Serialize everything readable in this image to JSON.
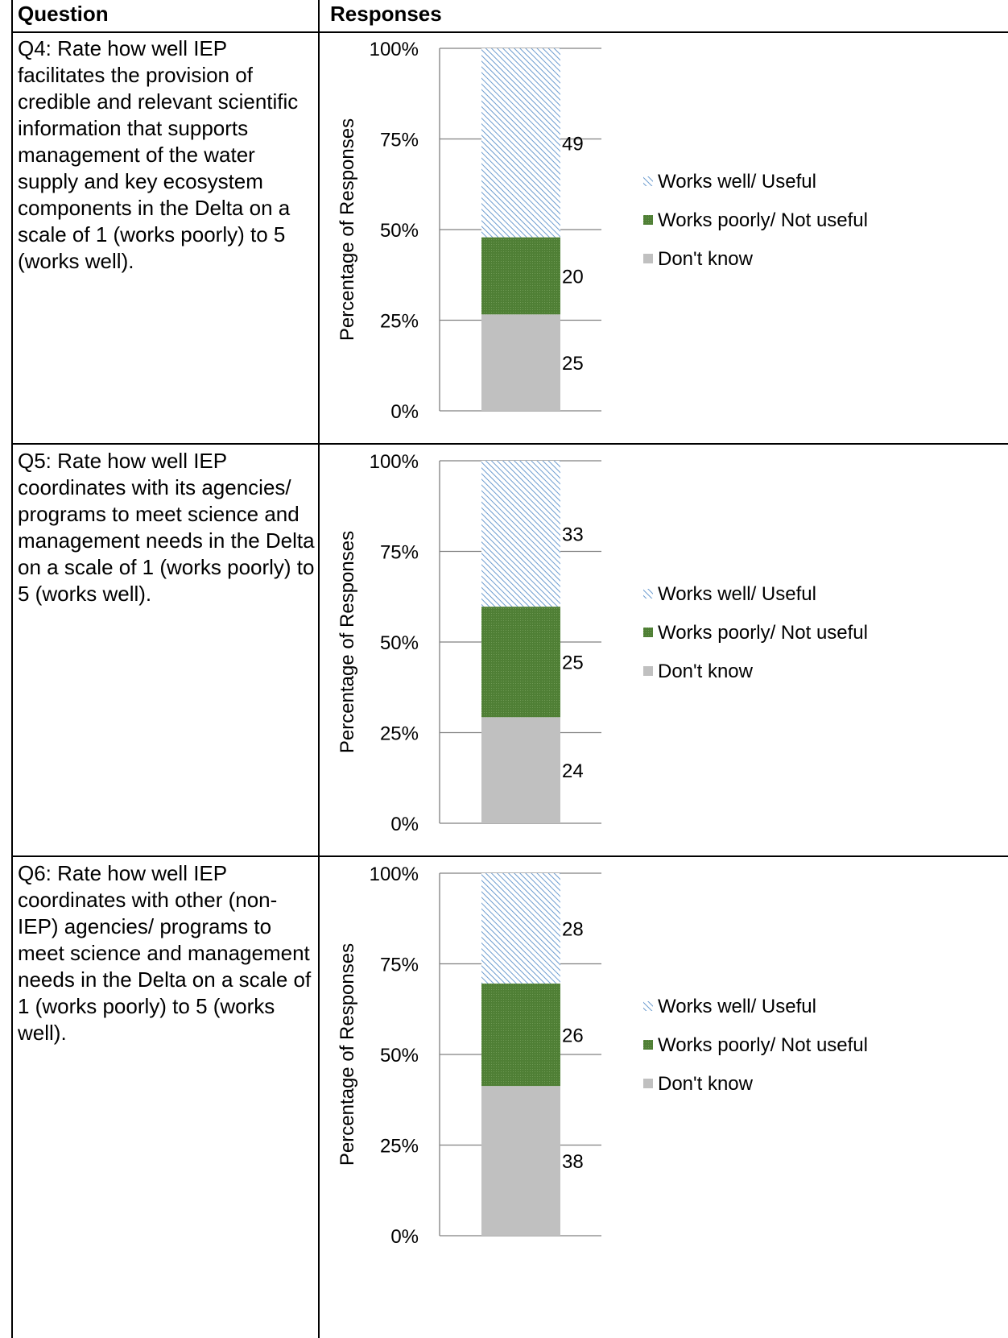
{
  "table": {
    "headers": {
      "question": "Question",
      "responses": "Responses"
    }
  },
  "rows": [
    {
      "question": "Q4: Rate how well IEP facilitates the provision of credible and relevant scientific information that supports management of the water supply and key ecosystem components in the Delta on a scale of 1 (works poorly) to 5 (works well)."
    },
    {
      "question": "Q5: Rate how well IEP coordinates with its agencies/ programs to meet science and management needs in the Delta on a scale of 1 (works poorly) to 5 (works well)."
    },
    {
      "question": "Q6: Rate how well IEP coordinates with other (non-IEP) agencies/ programs to meet science and management needs in the Delta on a scale of 1 (works poorly) to 5 (works well)."
    }
  ],
  "colors": {
    "works_well": "#8fb4d9",
    "works_poorly": "#4f7f35",
    "dont_know": "#c0c0c0"
  },
  "chart_data": [
    {
      "type": "bar",
      "stacked": true,
      "normalized": true,
      "ylabel": "Percentage of Responses",
      "ylim": [
        0,
        100
      ],
      "yticks": [
        "0%",
        "25%",
        "50%",
        "75%",
        "100%"
      ],
      "categories": [
        ""
      ],
      "legend": "right",
      "series": [
        {
          "name": "Don't know",
          "values": [
            25
          ]
        },
        {
          "name": "Works poorly/ Not useful",
          "values": [
            20
          ]
        },
        {
          "name": "Works well/ Useful",
          "values": [
            49
          ]
        }
      ]
    },
    {
      "type": "bar",
      "stacked": true,
      "normalized": true,
      "ylabel": "Percentage of Responses",
      "ylim": [
        0,
        100
      ],
      "yticks": [
        "0%",
        "25%",
        "50%",
        "75%",
        "100%"
      ],
      "categories": [
        ""
      ],
      "legend": "right",
      "series": [
        {
          "name": "Don't know",
          "values": [
            24
          ]
        },
        {
          "name": "Works poorly/ Not useful",
          "values": [
            25
          ]
        },
        {
          "name": "Works well/ Useful",
          "values": [
            33
          ]
        }
      ]
    },
    {
      "type": "bar",
      "stacked": true,
      "normalized": true,
      "ylabel": "Percentage of Responses",
      "ylim": [
        0,
        100
      ],
      "yticks": [
        "0%",
        "25%",
        "50%",
        "75%",
        "100%"
      ],
      "categories": [
        ""
      ],
      "legend": "right",
      "series": [
        {
          "name": "Don't know",
          "values": [
            38
          ]
        },
        {
          "name": "Works poorly/ Not useful",
          "values": [
            26
          ]
        },
        {
          "name": "Works well/ Useful",
          "values": [
            28
          ]
        }
      ]
    }
  ]
}
